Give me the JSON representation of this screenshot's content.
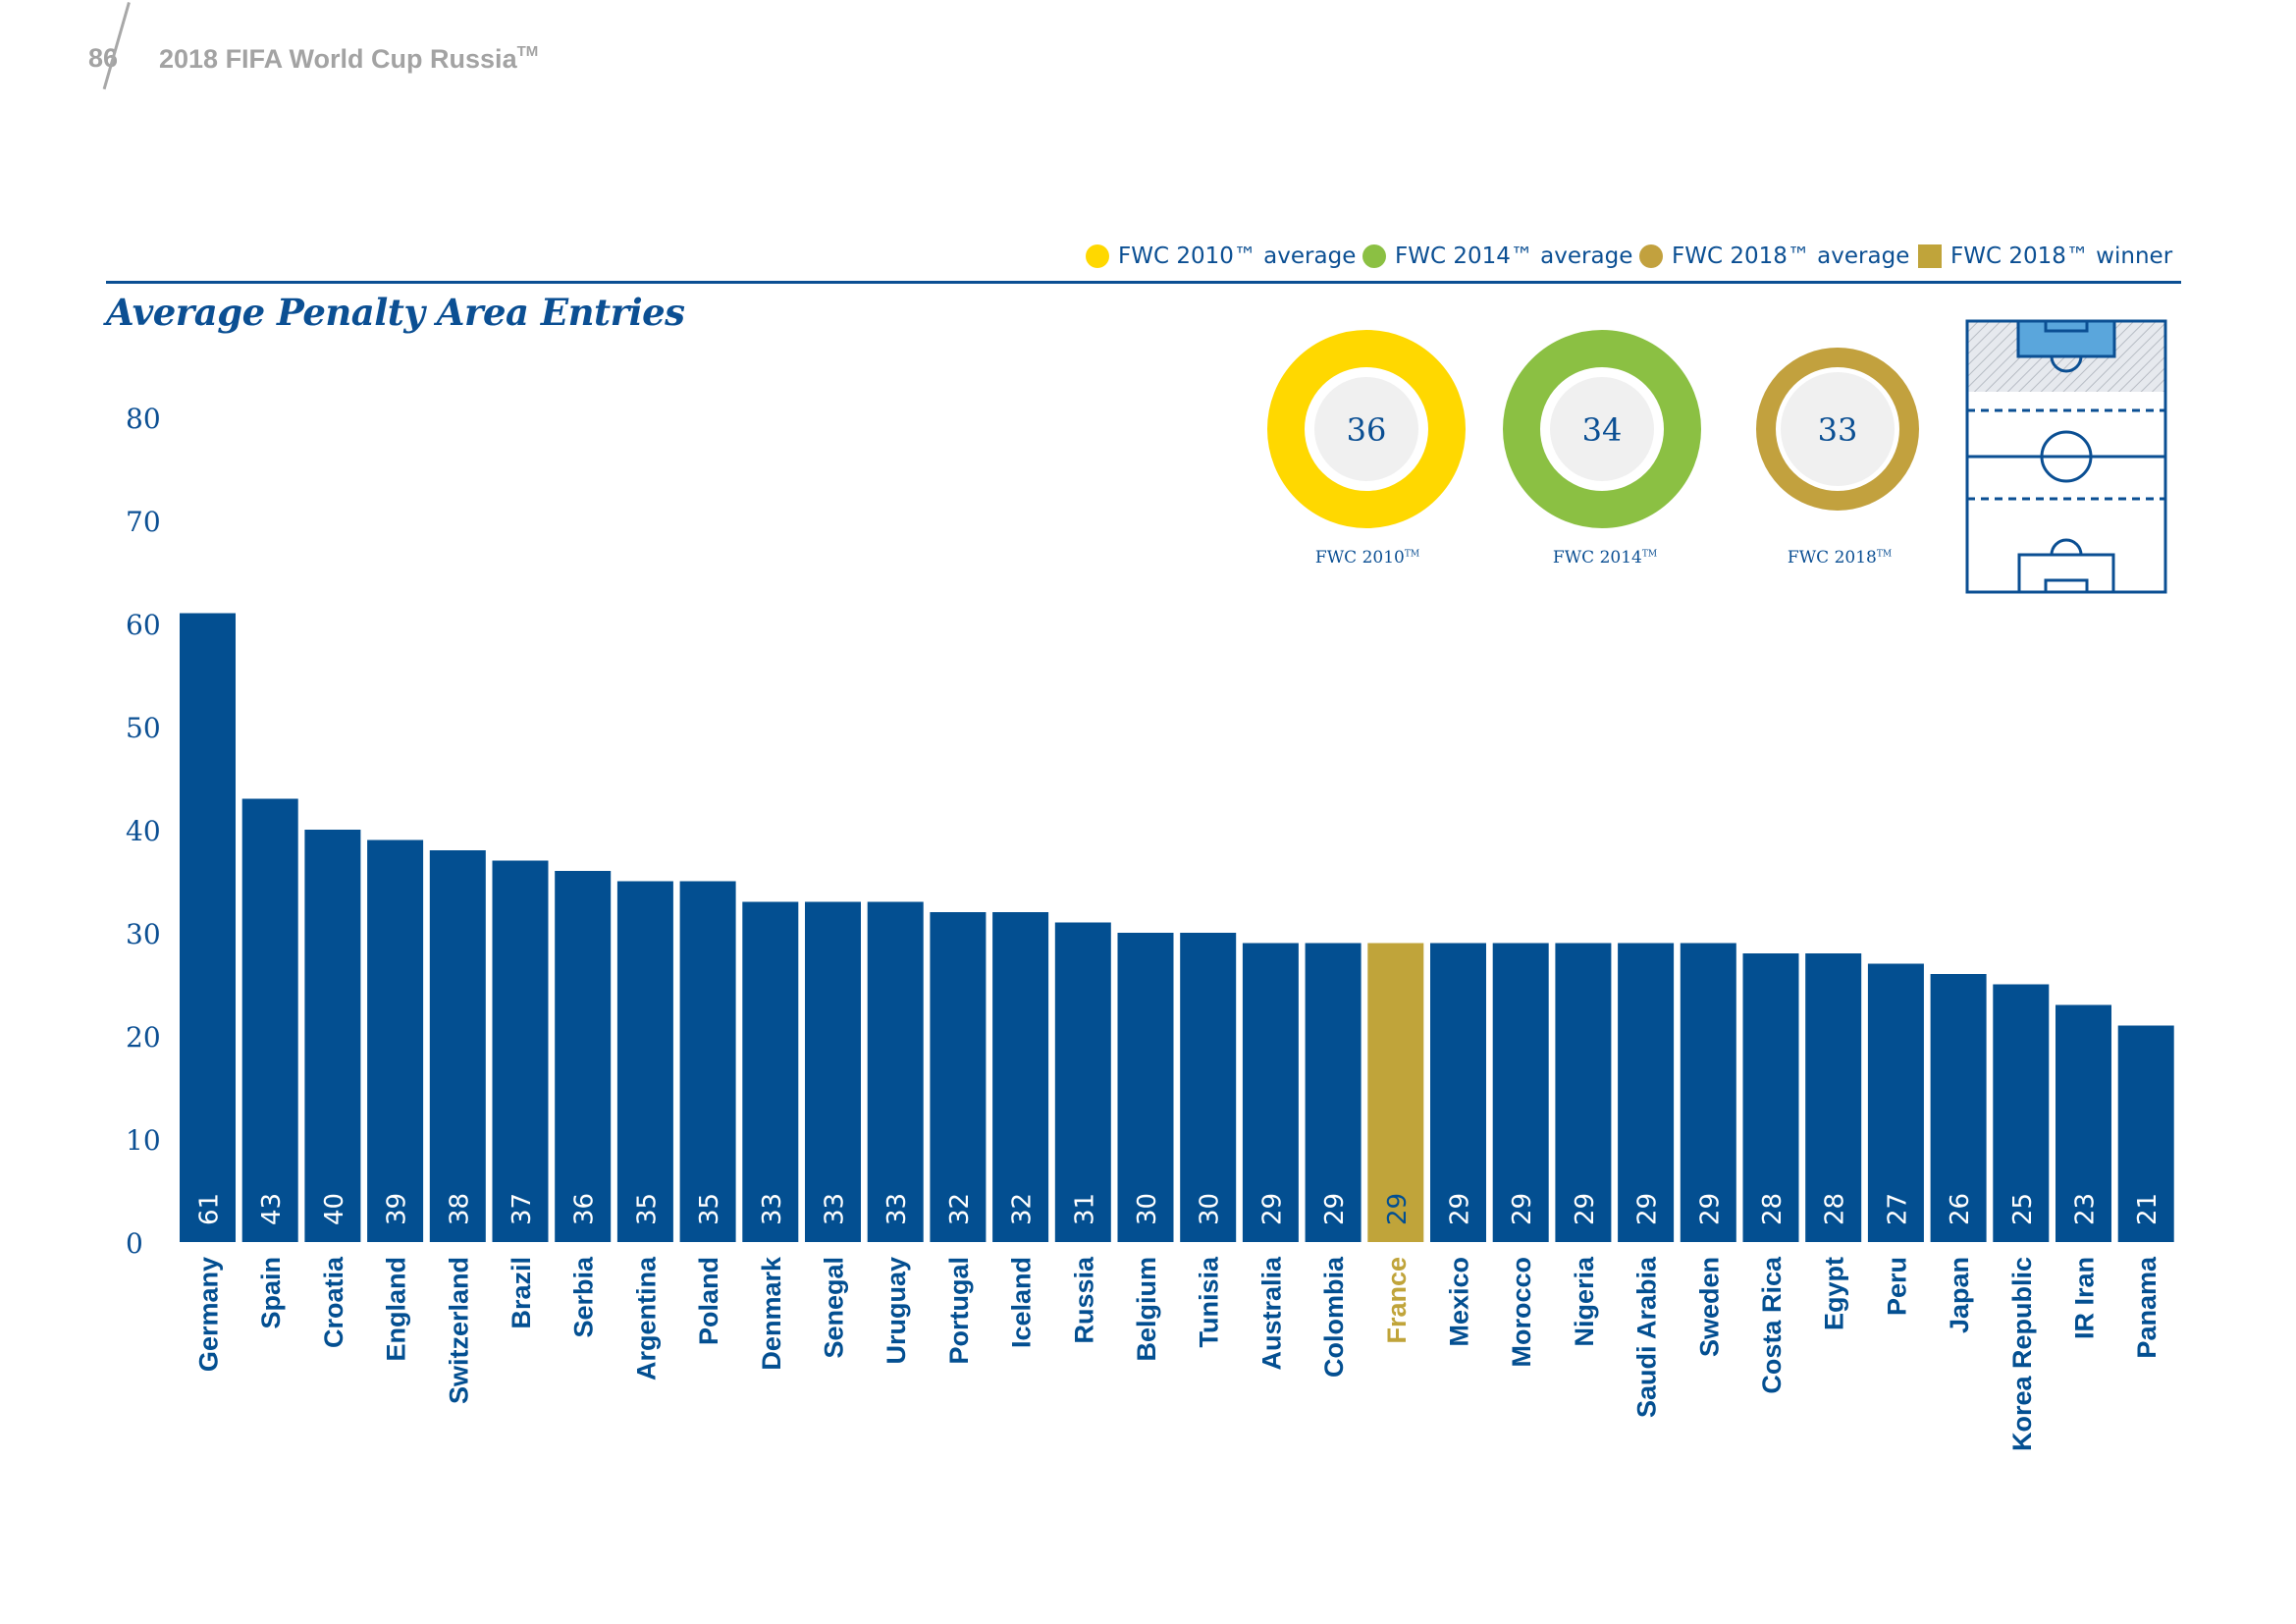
{
  "header": {
    "page_number": "86",
    "doc_title": "2018 FIFA World Cup Russia",
    "doc_title_mark": "TM"
  },
  "colors": {
    "bar": "#034f91",
    "winner": "#c0a43a",
    "fwc2010": "#ffd800",
    "fwc2014": "#8bc043",
    "fwc2018": "#c2a13e",
    "text": "#0b4f93"
  },
  "legend": [
    {
      "label": "FWC 2010™ average",
      "color": "#ffd800",
      "shape": "circle"
    },
    {
      "label": "FWC 2014™ average",
      "color": "#8bc043",
      "shape": "circle"
    },
    {
      "label": "FWC 2018™ average",
      "color": "#c2a13e",
      "shape": "circle"
    },
    {
      "label": "FWC 2018™ winner",
      "color": "#c0a43a",
      "shape": "square"
    }
  ],
  "averages": [
    {
      "value": "36",
      "label": "FWC 2010",
      "mark": "TM",
      "color": "#ffd800"
    },
    {
      "value": "34",
      "label": "FWC 2014",
      "mark": "TM",
      "color": "#8bc043"
    },
    {
      "value": "33",
      "label": "FWC 2018",
      "mark": "TM",
      "color": "#c2a13e"
    }
  ],
  "pitch_icon": "football-pitch-penalty-area-highlight-icon",
  "chart_data": {
    "type": "bar",
    "title": "Average Penalty Area Entries",
    "xlabel": "",
    "ylabel": "",
    "ylim": [
      0,
      80
    ],
    "yticks": [
      0,
      10,
      20,
      30,
      40,
      50,
      60,
      70,
      80
    ],
    "categories": [
      "Germany",
      "Spain",
      "Croatia",
      "England",
      "Switzerland",
      "Brazil",
      "Serbia",
      "Argentina",
      "Poland",
      "Denmark",
      "Senegal",
      "Uruguay",
      "Portugal",
      "Iceland",
      "Russia",
      "Belgium",
      "Tunisia",
      "Australia",
      "Colombia",
      "France",
      "Mexico",
      "Morocco",
      "Nigeria",
      "Saudi Arabia",
      "Sweden",
      "Costa Rica",
      "Egypt",
      "Peru",
      "Japan",
      "Korea Republic",
      "IR Iran",
      "Panama"
    ],
    "values": [
      61,
      43,
      40,
      39,
      38,
      37,
      36,
      35,
      35,
      33,
      33,
      33,
      32,
      32,
      31,
      30,
      30,
      29,
      29,
      29,
      29,
      29,
      29,
      29,
      29,
      28,
      28,
      27,
      26,
      25,
      23,
      21
    ],
    "value_labels": [
      "61",
      "43",
      "40",
      "39",
      "38",
      "37",
      "36",
      "35",
      "35",
      "33",
      "33",
      "33",
      "32",
      "32",
      "31",
      "30",
      "30",
      "29",
      "29",
      "29",
      "29",
      "29",
      "29",
      "29",
      "29",
      "28",
      "28",
      "27",
      "26",
      "25",
      "23",
      "21"
    ],
    "highlight": "France",
    "grid": false
  }
}
